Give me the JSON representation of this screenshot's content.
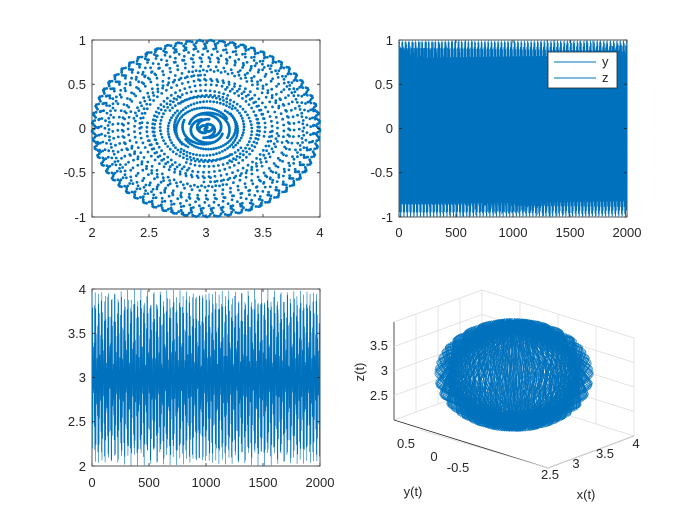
{
  "colors": {
    "series": "#0072bd",
    "axis": "#262626",
    "background": "#ffffff"
  },
  "chart_data": [
    {
      "id": "p1",
      "type": "scatter",
      "title": "",
      "xlabel": "",
      "ylabel": "",
      "xlim": [
        2,
        4
      ],
      "ylim": [
        -1,
        1
      ],
      "xticks": [
        "2",
        "2.5",
        "3",
        "3.5",
        "4"
      ],
      "yticks": [
        "-1",
        "-0.5",
        "0",
        "0.5",
        "1"
      ],
      "grid": false,
      "series": [
        {
          "points": "sphere projection (x,y) sampled from the trajectory, ~2000 points on 2.0–4.0 × -1–1"
        }
      ]
    },
    {
      "id": "p2",
      "type": "line",
      "title": "",
      "xlabel": "",
      "ylabel": "",
      "xlim": [
        0,
        2000
      ],
      "ylim": [
        -1,
        1
      ],
      "xticks": [
        "0",
        "500",
        "1000",
        "1500",
        "2000"
      ],
      "yticks": [
        "-1",
        "-0.5",
        "0",
        "0.5",
        "1"
      ],
      "legend": {
        "position": "top-right",
        "entries": [
          "y",
          "z"
        ]
      },
      "series": [
        {
          "name": "y",
          "amplitude": 1
        },
        {
          "name": "z",
          "amplitude": 1
        }
      ]
    },
    {
      "id": "p3",
      "type": "line",
      "title": "",
      "xlabel": "",
      "ylabel": "",
      "xlim": [
        0,
        2000
      ],
      "ylim": [
        2,
        4
      ],
      "xticks": [
        "0",
        "500",
        "1000",
        "1500",
        "2000"
      ],
      "yticks": [
        "2",
        "2.5",
        "3",
        "3.5",
        "4"
      ],
      "series": [
        {
          "center": 3,
          "amplitude": 1
        }
      ]
    },
    {
      "id": "p4",
      "type": "line3d",
      "title": "",
      "xlabel": "x(t)",
      "ylabel": "y(t)",
      "zlabel": "z(t)",
      "xticks": [
        "2.5",
        "3",
        "3.5",
        "4"
      ],
      "yticks": [
        "0.5",
        "0",
        "-0.5"
      ],
      "zticks": [
        "3.5",
        "3",
        "2.5"
      ],
      "series": [
        {
          "shape": "sphere trajectory centered (3,0,3), radius 1"
        }
      ]
    }
  ]
}
